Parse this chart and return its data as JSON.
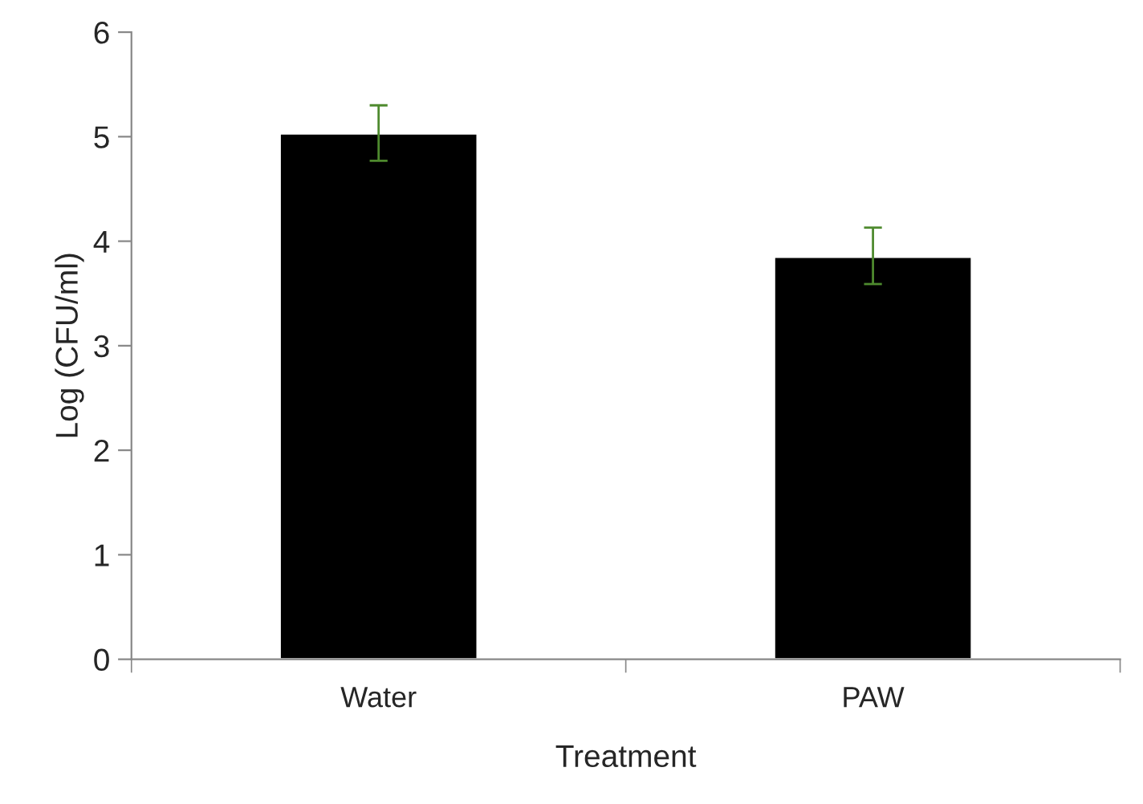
{
  "chart_data": {
    "type": "bar",
    "xlabel": "Treatment",
    "ylabel": "Log (CFU/ml)",
    "categories": [
      "Water",
      "PAW"
    ],
    "values": [
      5.03,
      3.85
    ],
    "errors": [
      [
        4.77,
        5.3
      ],
      [
        3.59,
        4.13
      ]
    ],
    "color": "#000000",
    "ylim": [
      0,
      6
    ],
    "yticks": [
      0,
      1,
      2,
      3,
      4,
      5,
      6
    ],
    "grid": false,
    "legend": false
  }
}
